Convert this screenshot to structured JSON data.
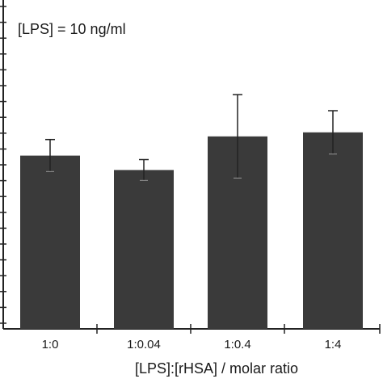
{
  "chart_data": {
    "type": "bar",
    "annotation": "[LPS] = 10 ng/ml",
    "xlabel": "[LPS]:[rHSA] / molar ratio",
    "ylabel": "",
    "categories": [
      "1:0",
      "1:0.04",
      "1:0.4",
      "1:4"
    ],
    "values": [
      216,
      198,
      240,
      245
    ],
    "errors": [
      20,
      13,
      52,
      27
    ],
    "ylim": [
      0,
      410
    ],
    "bar_color": "#3a3a3a",
    "grid": false,
    "legend": "none"
  }
}
